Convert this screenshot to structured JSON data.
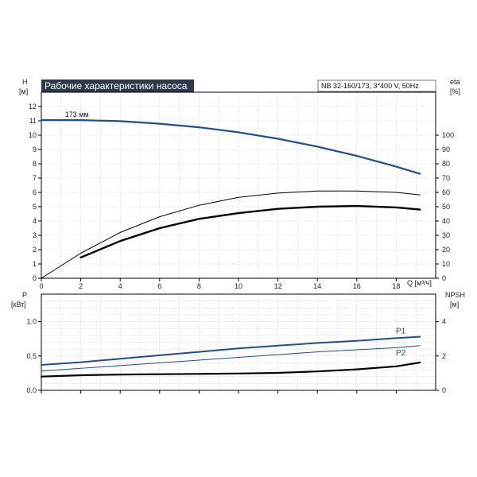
{
  "title": "Рабочие характеристики насоса",
  "model": "NB 32-160/173, 3*400 V, 50Hz",
  "colors": {
    "title_bg": "#2e3a49",
    "blue": "#1f4e96",
    "black": "#000000",
    "axis": "#000000"
  },
  "chart_data": [
    {
      "type": "line",
      "name": "head-efficiency",
      "xlabel": "Q [м³/ч]",
      "ylabel_left": "H",
      "ylabel_left_unit": "[м]",
      "ylabel_right": "eta",
      "ylabel_right_unit": "[%]",
      "xlim": [
        0,
        20
      ],
      "ylim_left": [
        0,
        13
      ],
      "ylim_right": [
        0,
        130
      ],
      "x_ticks": [
        "0",
        "2",
        "4",
        "6",
        "8",
        "10",
        "12",
        "14",
        "16",
        "18"
      ],
      "y_left_ticks": [
        "0",
        "1",
        "2",
        "3",
        "4",
        "5",
        "6",
        "7",
        "8",
        "9",
        "10",
        "11",
        "12"
      ],
      "y_right_ticks": [
        "0",
        "10",
        "20",
        "30",
        "40",
        "50",
        "60",
        "70",
        "80",
        "90",
        "100"
      ],
      "annotation": "173 мм",
      "grid": true,
      "series": [
        {
          "axis": "left",
          "color": "#1f4e96",
          "width": 2.2,
          "x": [
            0,
            2,
            4,
            6,
            8,
            10,
            12,
            14,
            16,
            18,
            19.2
          ],
          "y": [
            11.05,
            11.05,
            10.98,
            10.8,
            10.55,
            10.2,
            9.75,
            9.2,
            8.55,
            7.8,
            7.3
          ]
        },
        {
          "axis": "right",
          "color": "#000000",
          "width": 1,
          "x": [
            0,
            2,
            4,
            6,
            8,
            10,
            12,
            14,
            16,
            18,
            19.2
          ],
          "y": [
            0,
            17.5,
            32,
            43,
            51,
            56.5,
            59.5,
            61,
            61,
            60,
            58.3
          ]
        },
        {
          "axis": "right",
          "color": "#000000",
          "width": 2.4,
          "x": [
            2,
            4,
            6,
            8,
            10,
            12,
            14,
            16,
            18,
            19.2
          ],
          "y": [
            14.5,
            26,
            35,
            41.5,
            45.5,
            48.5,
            50,
            50.5,
            49.5,
            48
          ]
        }
      ]
    },
    {
      "type": "line",
      "name": "power-npsh",
      "ylabel_left": "P",
      "ylabel_left_unit": "[кВт]",
      "ylabel_right": "NPSH",
      "ylabel_right_unit": "[м]",
      "xlim": [
        0,
        20
      ],
      "ylim_left": [
        0,
        1.4
      ],
      "ylim_right": [
        0,
        5.6
      ],
      "y_left_ticks": [
        "0.0",
        "0.5",
        "1.0"
      ],
      "y_right_ticks": [
        "0",
        "2",
        "4"
      ],
      "grid": true,
      "series": [
        {
          "name": "P1",
          "axis": "left",
          "color": "#1f4e96",
          "width": 2,
          "x": [
            0,
            2,
            4,
            6,
            8,
            10,
            12,
            14,
            16,
            18,
            19.2
          ],
          "y": [
            0.37,
            0.41,
            0.46,
            0.51,
            0.56,
            0.61,
            0.65,
            0.69,
            0.72,
            0.76,
            0.78
          ]
        },
        {
          "name": "P2",
          "axis": "left",
          "color": "#1f4e96",
          "width": 1,
          "x": [
            0,
            2,
            4,
            6,
            8,
            10,
            12,
            14,
            16,
            18,
            19.2
          ],
          "y": [
            0.28,
            0.32,
            0.36,
            0.4,
            0.44,
            0.48,
            0.52,
            0.56,
            0.59,
            0.62,
            0.65
          ]
        },
        {
          "axis": "right",
          "color": "#000000",
          "width": 2.2,
          "x": [
            0,
            2,
            4,
            6,
            8,
            10,
            12,
            14,
            16,
            18,
            19.2
          ],
          "y": [
            0.8,
            0.88,
            0.92,
            0.94,
            0.96,
            0.98,
            1.02,
            1.1,
            1.22,
            1.4,
            1.62
          ]
        }
      ]
    }
  ]
}
